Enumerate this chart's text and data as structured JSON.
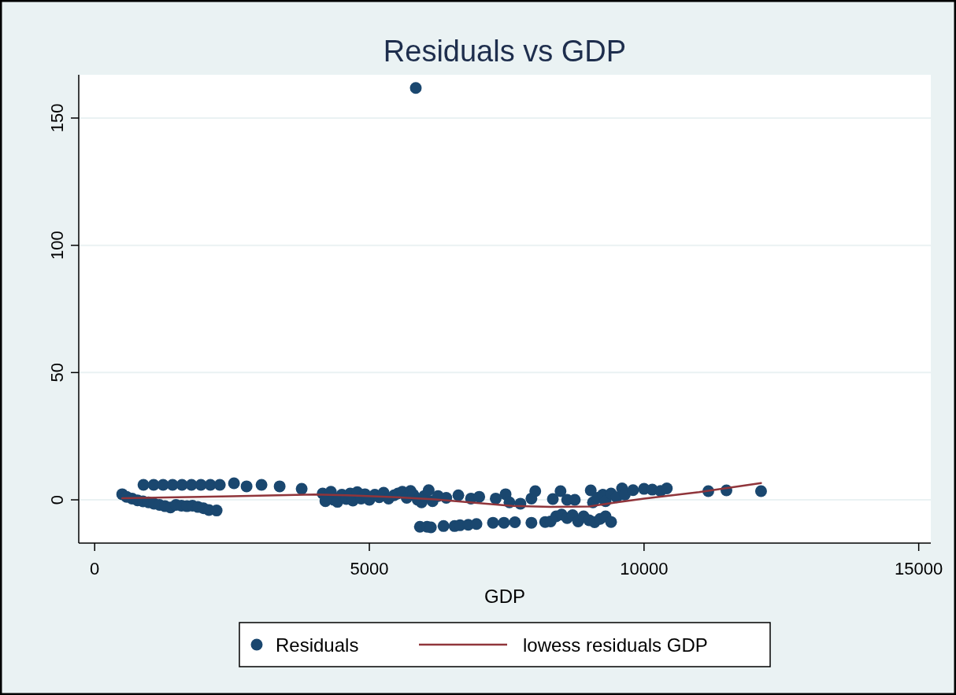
{
  "chart_data": {
    "type": "scatter",
    "title": "Residuals vs GDP",
    "xlabel": "GDP",
    "xlim": [
      -290,
      15220
    ],
    "ylim": [
      -17,
      167
    ],
    "xticks": [
      0,
      5000,
      10000,
      15000
    ],
    "yticks": [
      0,
      50,
      100,
      150
    ],
    "grid": "y",
    "legend": "bottom",
    "series": [
      {
        "name": "Residuals",
        "marker": "circle",
        "color": "#1a476f",
        "x": [
          888,
          1074,
          1246,
          1418,
          1590,
          1762,
          1934,
          2106,
          2278,
          2536,
          2765,
          3037,
          3367,
          3768,
          501,
          580,
          680,
          780,
          880,
          980,
          1080,
          1180,
          1280,
          1380,
          1480,
          1580,
          1680,
          1780,
          1880,
          1980,
          2080,
          2220,
          4150,
          4200,
          4300,
          4350,
          4420,
          4500,
          4580,
          4650,
          4700,
          4780,
          4850,
          4920,
          5000,
          5100,
          5180,
          5260,
          5350,
          5450,
          5520,
          5600,
          5680,
          5750,
          5800,
          5880,
          5950,
          6000,
          6080,
          6150,
          6250,
          6400,
          6620,
          6850,
          7000,
          7300,
          7480,
          7550,
          7750,
          7950,
          8020,
          5920,
          6050,
          6120,
          6350,
          6550,
          6650,
          6800,
          6950,
          7250,
          7450,
          7650,
          7950,
          8200,
          8300,
          8400,
          8500,
          8600,
          8700,
          8800,
          8900,
          9000,
          9100,
          9200,
          9300,
          9400,
          8340,
          8480,
          8600,
          8740,
          9030,
          9070,
          9150,
          9250,
          9300,
          9400,
          9500,
          9600,
          9650,
          9800,
          10000,
          10150,
          10300,
          10415,
          11170,
          11500,
          12130,
          5845
        ],
        "values": [
          5.9,
          5.9,
          5.9,
          5.9,
          5.9,
          5.9,
          5.9,
          5.9,
          5.9,
          6.5,
          5.3,
          5.9,
          5.3,
          4.3,
          2.2,
          1.2,
          0.5,
          -0.2,
          -0.6,
          -1,
          -1.5,
          -2,
          -2.5,
          -3,
          -2,
          -2.3,
          -2.5,
          -2.3,
          -2.8,
          -3.3,
          -4,
          -4.2,
          2.5,
          -0.5,
          3.2,
          0,
          -0.8,
          2,
          0.3,
          2.5,
          -0.3,
          3,
          0.5,
          2.2,
          0,
          2,
          1,
          2.8,
          0.5,
          1.8,
          2.5,
          3.2,
          0.8,
          3.5,
          2,
          0,
          -1,
          1.5,
          3.8,
          -0.5,
          1.5,
          0.8,
          1.8,
          0.5,
          1.2,
          0.5,
          2.2,
          -1,
          -1.5,
          0.5,
          3.4,
          -10.6,
          -10.6,
          -10.8,
          -10.3,
          -10.3,
          -10,
          -9.8,
          -9.5,
          -9,
          -9,
          -8.8,
          -9,
          -8.7,
          -8.5,
          -6.5,
          -5.8,
          -7.2,
          -6,
          -8.5,
          -6.5,
          -8,
          -8.8,
          -7.5,
          -6.5,
          -8.7,
          0.3,
          3.4,
          0,
          0,
          3.7,
          -1,
          0.8,
          2,
          -0.5,
          2.5,
          1,
          4.5,
          2,
          3.8,
          4.3,
          4,
          3.5,
          4.5,
          3.4,
          3.7,
          3.4,
          161.8
        ]
      },
      {
        "name": "lowess residuals GDP",
        "type": "line",
        "color": "#90353b",
        "x": [
          501,
          1500,
          2500,
          3500,
          4000,
          4600,
          5500,
          6200,
          7000,
          7600,
          8300,
          9000,
          9500,
          10000,
          11000,
          12130
        ],
        "values": [
          0.6,
          1,
          1.4,
          1.9,
          2.1,
          1.8,
          1,
          0.2,
          -1.3,
          -2.4,
          -2.8,
          -2.6,
          -1,
          0.5,
          3,
          6.6
        ]
      }
    ]
  }
}
